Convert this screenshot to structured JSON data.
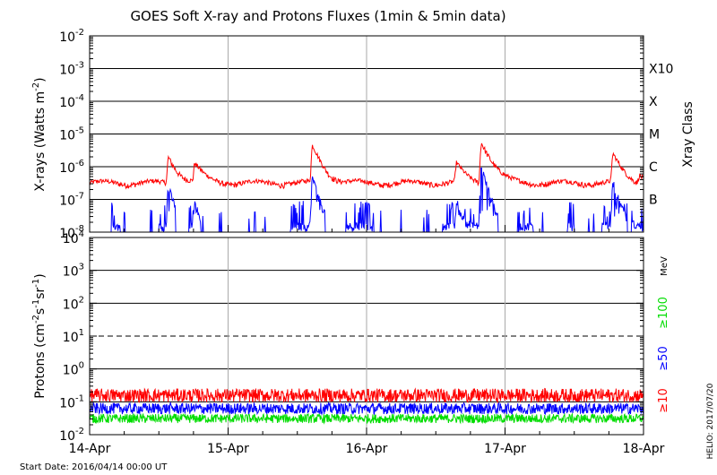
{
  "chart_data": [
    {
      "type": "line",
      "title": "GOES Soft X-ray and Protons Fluxes   (1min & 5min data)",
      "ylabel_main": "X-rays (Watts m",
      "ylabel_sup": "-2",
      "ylabel_close": ")",
      "y_scale": "log",
      "ylim": [
        1e-08,
        0.01
      ],
      "y_ticks": [
        {
          "mant": "10",
          "exp": "-2"
        },
        {
          "mant": "10",
          "exp": "-3"
        },
        {
          "mant": "10",
          "exp": "-4"
        },
        {
          "mant": "10",
          "exp": "-5"
        },
        {
          "mant": "10",
          "exp": "-6"
        },
        {
          "mant": "10",
          "exp": "-7"
        },
        {
          "mant": "10",
          "exp": "-8"
        }
      ],
      "class_axis_label": "Xray Class",
      "class_labels": [
        {
          "label": "X10",
          "level": 0.001
        },
        {
          "label": "X",
          "level": 0.0001
        },
        {
          "label": "M",
          "level": 1e-05
        },
        {
          "label": "C",
          "level": 1e-06
        },
        {
          "label": "B",
          "level": 1e-07
        }
      ],
      "grid": "horizontal lines at each decade, vertical lines at day boundaries",
      "series": [
        {
          "color": "#ff0000",
          "peaks": [
            {
              "day": 0.57,
              "value": 2e-06
            },
            {
              "day": 0.76,
              "value": 1.2e-06
            },
            {
              "day": 1.61,
              "value": 4e-06
            },
            {
              "day": 2.65,
              "value": 1.2e-06
            },
            {
              "day": 2.83,
              "value": 6e-06
            },
            {
              "day": 3.78,
              "value": 2.2e-06
            },
            {
              "day": 3.97,
              "value": 6e-07
            }
          ]
        },
        {
          "color": "#0000ff",
          "peaks": [
            {
              "day": 0.57,
              "value": 2e-07
            },
            {
              "day": 0.76,
              "value": 6e-08
            },
            {
              "day": 1.61,
              "value": 4e-07
            },
            {
              "day": 2.65,
              "value": 6e-08
            },
            {
              "day": 2.83,
              "value": 8e-07
            },
            {
              "day": 3.78,
              "value": 3e-07
            }
          ]
        }
      ]
    },
    {
      "type": "line",
      "ylabel_main": "Protons (cm",
      "ylabel_sup1": "-2",
      "ylabel_mid1": "s",
      "ylabel_sup2": "-1",
      "ylabel_mid2": "sr",
      "ylabel_sup3": "-1",
      "ylabel_close": ")",
      "y_scale": "log",
      "ylim": [
        0.01,
        10000
      ],
      "y_ticks": [
        {
          "mant": "10",
          "exp": "4"
        },
        {
          "mant": "10",
          "exp": "3"
        },
        {
          "mant": "10",
          "exp": "2"
        },
        {
          "mant": "10",
          "exp": "1"
        },
        {
          "mant": "10",
          "exp": "0"
        },
        {
          "mant": "10",
          "exp": "-1"
        },
        {
          "mant": "10",
          "exp": "-2"
        }
      ],
      "threshold_dashed": 10,
      "energy_unit": "MeV",
      "series": [
        {
          "name": "≥10",
          "color": "#ff0000",
          "typical_value": 0.15
        },
        {
          "name": "≥50",
          "color": "#0000ff",
          "typical_value": 0.06
        },
        {
          "name": "≥100",
          "color": "#00dd00",
          "typical_value": 0.03
        }
      ]
    }
  ],
  "x_axis": {
    "start": "14-Apr",
    "end": "18-Apr",
    "tick_labels": [
      "14-Apr",
      "15-Apr",
      "16-Apr",
      "17-Apr",
      "18-Apr"
    ]
  },
  "footer": {
    "start_date": "Start Date: 2016/04/14 00:00 UT",
    "credit": "HELIO: 2017/07/20"
  }
}
